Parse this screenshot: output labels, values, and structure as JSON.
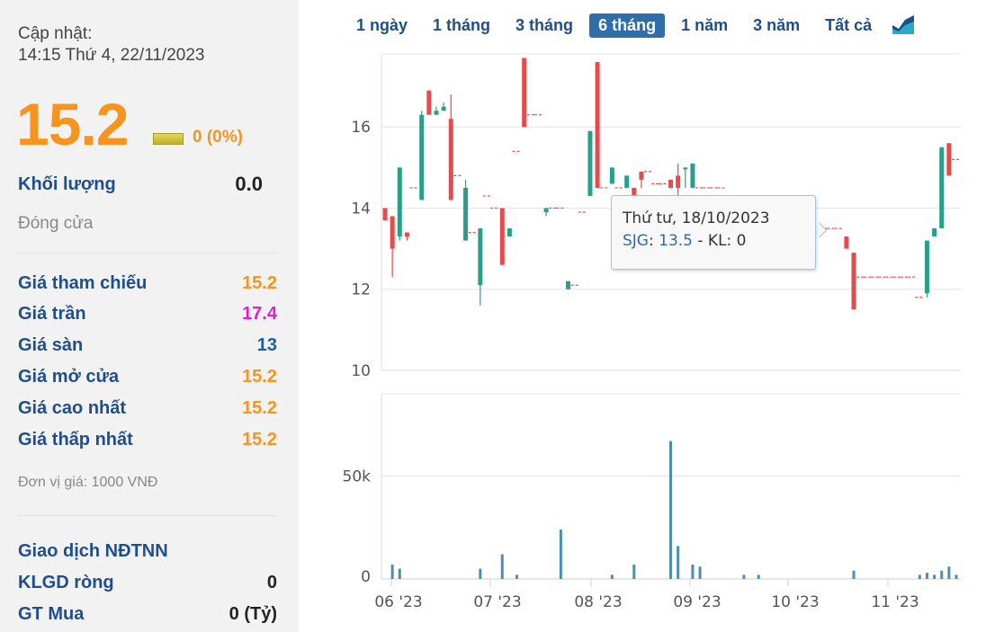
{
  "panel": {
    "update_label": "Cập nhật:",
    "update_time": "14:15 Thứ 4, 22/11/2023",
    "price": "15.2",
    "change": "0 (0%)",
    "volume_label": "Khối lượng",
    "volume_value": "0.0",
    "close_label": "Đóng cửa",
    "stats": [
      {
        "label": "Giá tham chiếu",
        "value": "15.2",
        "color": "#f7941d"
      },
      {
        "label": "Giá trần",
        "value": "17.4",
        "color": "#e020d0"
      },
      {
        "label": "Giá sàn",
        "value": "13",
        "color": "#1a5fa0"
      },
      {
        "label": "Giá mở cửa",
        "value": "15.2",
        "color": "#f7941d"
      },
      {
        "label": "Giá cao nhất",
        "value": "15.2",
        "color": "#f7941d"
      },
      {
        "label": "Giá thấp nhất",
        "value": "15.2",
        "color": "#f7941d"
      }
    ],
    "unit_note": "Đơn vị giá: 1000 VNĐ",
    "foreign": [
      {
        "label": "Giao dịch NĐTNN",
        "value": ""
      },
      {
        "label": "KLGD ròng",
        "value": "0"
      },
      {
        "label": "GT Mua",
        "value": "0 (Tỷ)"
      }
    ]
  },
  "tabs": [
    "1 ngày",
    "1 tháng",
    "3 tháng",
    "6 tháng",
    "1 năm",
    "3 năm",
    "Tất cả"
  ],
  "active_tab": "6 tháng",
  "chart_type_icon": "area-chart-icon",
  "tooltip": {
    "date": "Thứ tư, 18/10/2023",
    "symbol": "SJG",
    "price": "13.5",
    "volume_text": " - KL: 0"
  },
  "chart_data": {
    "type": "candlestick",
    "symbol": "SJG",
    "price_axis": {
      "ticks": [
        "10",
        "12",
        "14",
        "16"
      ],
      "range": [
        10,
        17.8
      ]
    },
    "volume_axis": {
      "ticks": [
        "0",
        "50k"
      ],
      "range": [
        0,
        90000
      ]
    },
    "x_ticks": [
      "06 '23",
      "07 '23",
      "08 '23",
      "09 '23",
      "10 '23",
      "11 '23"
    ],
    "colors": {
      "up": "#26a08a",
      "down": "#e8494a",
      "flat": "#e8494a",
      "volume": "#4a8db5"
    },
    "days": [
      {
        "o": 14.0,
        "h": 14.0,
        "l": 13.7,
        "c": 13.7,
        "v": 0
      },
      {
        "o": 13.8,
        "h": 13.8,
        "l": 12.3,
        "c": 13.0,
        "v": 7000
      },
      {
        "o": 13.3,
        "h": 15.0,
        "l": 13.2,
        "c": 15.0,
        "v": 5000
      },
      {
        "o": 13.4,
        "h": 13.4,
        "l": 13.2,
        "c": 13.3,
        "v": 0
      },
      {
        "o": 14.5,
        "h": 14.5,
        "l": 14.5,
        "c": 14.5,
        "v": 0
      },
      {
        "o": 14.2,
        "h": 16.4,
        "l": 14.2,
        "c": 16.3,
        "v": 0
      },
      {
        "o": 16.9,
        "h": 16.9,
        "l": 16.3,
        "c": 16.3,
        "v": 0
      },
      {
        "o": 16.3,
        "h": 16.5,
        "l": 16.3,
        "c": 16.4,
        "v": 0
      },
      {
        "o": 16.4,
        "h": 16.6,
        "l": 16.4,
        "c": 16.5,
        "v": 0
      },
      {
        "o": 16.2,
        "h": 16.8,
        "l": 14.2,
        "c": 14.2,
        "v": 0
      },
      {
        "o": 14.8,
        "h": 14.8,
        "l": 14.8,
        "c": 14.8,
        "v": 0
      },
      {
        "o": 13.2,
        "h": 14.7,
        "l": 13.2,
        "c": 14.5,
        "v": 0
      },
      {
        "o": 13.4,
        "h": 13.4,
        "l": 13.4,
        "c": 13.4,
        "v": 0
      },
      {
        "o": 12.1,
        "h": 13.5,
        "l": 11.6,
        "c": 13.5,
        "v": 5000
      },
      {
        "o": 14.3,
        "h": 14.3,
        "l": 14.3,
        "c": 14.3,
        "v": 0
      },
      {
        "o": 14.0,
        "h": 14.0,
        "l": 14.0,
        "c": 14.0,
        "v": 0
      },
      {
        "o": 14.0,
        "h": 14.0,
        "l": 12.6,
        "c": 12.6,
        "v": 12000
      },
      {
        "o": 13.3,
        "h": 13.5,
        "l": 13.3,
        "c": 13.5,
        "v": 0
      },
      {
        "o": 15.4,
        "h": 15.4,
        "l": 15.4,
        "c": 15.4,
        "v": 2000
      },
      {
        "o": 17.7,
        "h": 17.7,
        "l": 16.0,
        "c": 16.0,
        "v": 0
      },
      {
        "o": 16.3,
        "h": 16.3,
        "l": 16.3,
        "c": 16.3,
        "v": 0
      },
      {
        "o": 16.3,
        "h": 16.3,
        "l": 16.3,
        "c": 16.3,
        "v": 0
      },
      {
        "o": 13.9,
        "h": 14.0,
        "l": 13.8,
        "c": 14.0,
        "v": 0
      },
      {
        "o": 14.0,
        "h": 14.0,
        "l": 14.0,
        "c": 14.0,
        "v": 0
      },
      {
        "o": 14.0,
        "h": 14.0,
        "l": 14.0,
        "c": 14.0,
        "v": 24000
      },
      {
        "o": 12.0,
        "h": 12.2,
        "l": 12.0,
        "c": 12.2,
        "v": 0
      },
      {
        "o": 12.1,
        "h": 12.1,
        "l": 12.1,
        "c": 12.1,
        "v": 0
      },
      {
        "o": 13.9,
        "h": 13.9,
        "l": 13.9,
        "c": 13.9,
        "v": 0
      },
      {
        "o": 14.3,
        "h": 15.9,
        "l": 14.3,
        "c": 15.9,
        "v": 0
      },
      {
        "o": 17.6,
        "h": 17.6,
        "l": 14.5,
        "c": 14.5,
        "v": 0
      },
      {
        "o": 14.5,
        "h": 14.5,
        "l": 14.5,
        "c": 14.5,
        "v": 0
      },
      {
        "o": 14.6,
        "h": 15.0,
        "l": 14.6,
        "c": 15.0,
        "v": 2000
      },
      {
        "o": 14.5,
        "h": 14.5,
        "l": 14.5,
        "c": 14.5,
        "v": 0
      },
      {
        "o": 14.5,
        "h": 14.8,
        "l": 14.5,
        "c": 14.8,
        "v": 0
      },
      {
        "o": 14.5,
        "h": 14.5,
        "l": 13.3,
        "c": 13.3,
        "v": 7000
      },
      {
        "o": 14.9,
        "h": 14.9,
        "l": 14.5,
        "c": 14.7,
        "v": 0
      },
      {
        "o": 14.9,
        "h": 14.9,
        "l": 14.9,
        "c": 14.9,
        "v": 0
      },
      {
        "o": 14.6,
        "h": 14.6,
        "l": 14.6,
        "c": 14.6,
        "v": 0
      },
      {
        "o": 14.6,
        "h": 14.6,
        "l": 14.6,
        "c": 14.6,
        "v": 0
      },
      {
        "o": 14.7,
        "h": 14.7,
        "l": 14.5,
        "c": 14.5,
        "v": 67000
      },
      {
        "o": 14.8,
        "h": 15.1,
        "l": 14.3,
        "c": 14.5,
        "v": 16000
      },
      {
        "o": 15.0,
        "h": 15.0,
        "l": 14.5,
        "c": 15.0,
        "v": 0
      },
      {
        "o": 14.5,
        "h": 15.1,
        "l": 14.5,
        "c": 15.1,
        "v": 7000
      },
      {
        "o": 14.5,
        "h": 14.5,
        "l": 14.5,
        "c": 14.5,
        "v": 6000
      },
      {
        "o": 14.5,
        "h": 14.5,
        "l": 14.5,
        "c": 14.5,
        "v": 0
      },
      {
        "o": 14.5,
        "h": 14.5,
        "l": 14.5,
        "c": 14.5,
        "v": 0
      },
      {
        "o": 14.5,
        "h": 14.5,
        "l": 14.5,
        "c": 14.5,
        "v": 0
      },
      {
        "o": 13.5,
        "h": 13.5,
        "l": 13.5,
        "c": 13.5,
        "v": 0
      },
      {
        "o": 13.5,
        "h": 13.5,
        "l": 13.5,
        "c": 13.5,
        "v": 0
      },
      {
        "o": 13.2,
        "h": 13.2,
        "l": 13.0,
        "c": 13.0,
        "v": 2000
      },
      {
        "o": 13.5,
        "h": 13.5,
        "l": 13.5,
        "c": 13.5,
        "v": 0
      },
      {
        "o": 13.5,
        "h": 13.5,
        "l": 13.5,
        "c": 13.5,
        "v": 2000
      },
      {
        "o": 13.5,
        "h": 13.5,
        "l": 13.5,
        "c": 13.5,
        "v": 0
      },
      {
        "o": 13.5,
        "h": 13.5,
        "l": 13.5,
        "c": 13.5,
        "v": 0
      },
      {
        "o": 13.5,
        "h": 13.5,
        "l": 13.5,
        "c": 13.5,
        "v": 0
      },
      {
        "o": 13.5,
        "h": 13.5,
        "l": 13.5,
        "c": 13.5,
        "v": 0
      },
      {
        "o": 13.5,
        "h": 13.5,
        "l": 13.5,
        "c": 13.5,
        "v": 0
      },
      {
        "o": 13.5,
        "h": 13.5,
        "l": 13.5,
        "c": 13.5,
        "v": 0
      },
      {
        "o": 13.5,
        "h": 13.5,
        "l": 13.5,
        "c": 13.5,
        "v": 0
      },
      {
        "o": 13.5,
        "h": 13.5,
        "l": 13.5,
        "c": 13.5,
        "v": 0
      },
      {
        "o": 13.5,
        "h": 13.5,
        "l": 13.5,
        "c": 13.5,
        "v": 0
      },
      {
        "o": 13.5,
        "h": 13.5,
        "l": 13.5,
        "c": 13.5,
        "v": 0
      },
      {
        "o": 13.5,
        "h": 13.5,
        "l": 13.5,
        "c": 13.5,
        "v": 0
      },
      {
        "o": 13.3,
        "h": 13.3,
        "l": 13.0,
        "c": 13.0,
        "v": 0
      },
      {
        "o": 12.9,
        "h": 12.9,
        "l": 11.5,
        "c": 11.5,
        "v": 4000
      },
      {
        "o": 12.3,
        "h": 12.3,
        "l": 12.3,
        "c": 12.3,
        "v": 0
      },
      {
        "o": 12.3,
        "h": 12.3,
        "l": 12.3,
        "c": 12.3,
        "v": 0
      },
      {
        "o": 12.3,
        "h": 12.3,
        "l": 12.3,
        "c": 12.3,
        "v": 0
      },
      {
        "o": 12.3,
        "h": 12.3,
        "l": 12.3,
        "c": 12.3,
        "v": 0
      },
      {
        "o": 12.3,
        "h": 12.3,
        "l": 12.3,
        "c": 12.3,
        "v": 0
      },
      {
        "o": 12.3,
        "h": 12.3,
        "l": 12.3,
        "c": 12.3,
        "v": 0
      },
      {
        "o": 12.3,
        "h": 12.3,
        "l": 12.3,
        "c": 12.3,
        "v": 0
      },
      {
        "o": 12.3,
        "h": 12.3,
        "l": 12.3,
        "c": 12.3,
        "v": 0
      },
      {
        "o": 11.8,
        "h": 11.8,
        "l": 11.8,
        "c": 11.8,
        "v": 2000
      },
      {
        "o": 11.9,
        "h": 13.2,
        "l": 11.8,
        "c": 13.2,
        "v": 3000
      },
      {
        "o": 13.3,
        "h": 13.5,
        "l": 13.3,
        "c": 13.5,
        "v": 2000
      },
      {
        "o": 13.5,
        "h": 15.5,
        "l": 13.5,
        "c": 15.5,
        "v": 4000
      },
      {
        "o": 15.6,
        "h": 15.6,
        "l": 14.8,
        "c": 14.8,
        "v": 6000
      },
      {
        "o": 15.2,
        "h": 15.2,
        "l": 15.2,
        "c": 15.2,
        "v": 2000
      }
    ]
  }
}
